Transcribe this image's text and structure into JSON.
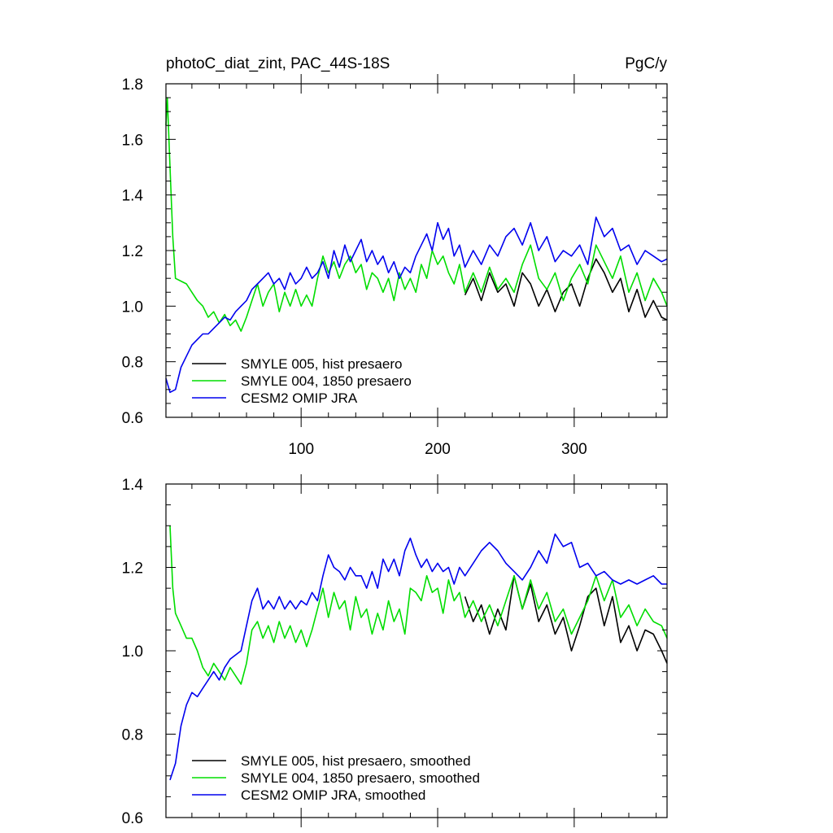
{
  "chart_data": [
    {
      "type": "line",
      "title": "photoC_diat_zint, PAC_44S-18S",
      "units": "PgC/y",
      "xlabel": "",
      "ylabel": "",
      "xlim": [
        1,
        368
      ],
      "ylim": [
        0.6,
        1.8
      ],
      "x_ticks": [
        100,
        200,
        300
      ],
      "y_ticks": [
        0.6,
        0.8,
        1.0,
        1.2,
        1.4,
        1.6,
        1.8
      ],
      "y_tick_labels": [
        "0.6",
        "0.8",
        "1.0",
        "1.2",
        "1.4",
        "1.6",
        "1.8"
      ],
      "x_tick_labels": [
        "100",
        "200",
        "300"
      ],
      "legend_position": "bottom-left",
      "series": [
        {
          "name": "SMYLE 005, hist presaero",
          "color": "#000000",
          "start": 220,
          "x": [
            220,
            226,
            232,
            238,
            244,
            250,
            256,
            262,
            268,
            274,
            280,
            286,
            292,
            298,
            304,
            310,
            316,
            322,
            328,
            334,
            340,
            346,
            352,
            358,
            364,
            368
          ],
          "values": [
            1.04,
            1.1,
            1.02,
            1.12,
            1.05,
            1.08,
            1.0,
            1.12,
            1.08,
            1.0,
            1.06,
            0.98,
            1.05,
            1.08,
            1.0,
            1.1,
            1.17,
            1.12,
            1.05,
            1.1,
            0.98,
            1.06,
            0.96,
            1.02,
            0.96,
            0.95
          ]
        },
        {
          "name": "SMYLE 004, 1850 presaero",
          "color": "#00dd00",
          "x": [
            1,
            2,
            4,
            6,
            8,
            12,
            16,
            20,
            24,
            28,
            32,
            36,
            40,
            44,
            48,
            52,
            56,
            60,
            64,
            68,
            72,
            76,
            80,
            84,
            88,
            92,
            96,
            100,
            104,
            108,
            112,
            116,
            120,
            124,
            128,
            132,
            136,
            140,
            144,
            148,
            152,
            156,
            160,
            164,
            168,
            172,
            176,
            180,
            184,
            188,
            192,
            196,
            200,
            204,
            208,
            212,
            216,
            220,
            226,
            232,
            238,
            244,
            250,
            256,
            262,
            268,
            274,
            280,
            286,
            292,
            298,
            304,
            310,
            316,
            322,
            328,
            334,
            340,
            346,
            352,
            358,
            364,
            368
          ],
          "values": [
            1.65,
            1.75,
            1.5,
            1.25,
            1.1,
            1.09,
            1.08,
            1.05,
            1.02,
            1.0,
            0.96,
            0.98,
            0.94,
            0.97,
            0.93,
            0.95,
            0.91,
            0.96,
            1.02,
            1.08,
            1.0,
            1.05,
            1.08,
            0.98,
            1.05,
            1.0,
            1.06,
            1.0,
            1.04,
            1.0,
            1.1,
            1.18,
            1.12,
            1.16,
            1.1,
            1.15,
            1.18,
            1.12,
            1.15,
            1.06,
            1.12,
            1.1,
            1.05,
            1.1,
            1.02,
            1.12,
            1.06,
            1.1,
            1.05,
            1.15,
            1.1,
            1.2,
            1.15,
            1.18,
            1.12,
            1.08,
            1.15,
            1.05,
            1.12,
            1.05,
            1.14,
            1.06,
            1.1,
            1.05,
            1.15,
            1.22,
            1.1,
            1.06,
            1.12,
            1.02,
            1.1,
            1.15,
            1.08,
            1.22,
            1.16,
            1.1,
            1.18,
            1.05,
            1.12,
            1.02,
            1.1,
            1.05,
            1.0
          ]
        },
        {
          "name": "CESM2 OMIP JRA",
          "color": "#0000ee",
          "x": [
            1,
            4,
            8,
            12,
            16,
            20,
            24,
            28,
            32,
            36,
            40,
            44,
            48,
            52,
            56,
            60,
            64,
            68,
            72,
            76,
            80,
            84,
            88,
            92,
            96,
            100,
            104,
            108,
            112,
            116,
            120,
            124,
            128,
            132,
            136,
            140,
            144,
            148,
            152,
            156,
            160,
            164,
            168,
            172,
            176,
            180,
            184,
            188,
            192,
            196,
            200,
            204,
            208,
            212,
            216,
            220,
            226,
            232,
            238,
            244,
            250,
            256,
            262,
            268,
            274,
            280,
            286,
            292,
            298,
            304,
            310,
            316,
            322,
            328,
            334,
            340,
            346,
            352,
            358,
            364,
            368
          ],
          "values": [
            0.74,
            0.69,
            0.7,
            0.78,
            0.82,
            0.86,
            0.88,
            0.9,
            0.9,
            0.92,
            0.94,
            0.96,
            0.95,
            0.98,
            1.0,
            1.02,
            1.06,
            1.08,
            1.1,
            1.12,
            1.08,
            1.1,
            1.06,
            1.12,
            1.08,
            1.1,
            1.14,
            1.1,
            1.12,
            1.16,
            1.1,
            1.2,
            1.14,
            1.22,
            1.16,
            1.2,
            1.24,
            1.16,
            1.2,
            1.15,
            1.18,
            1.12,
            1.16,
            1.1,
            1.14,
            1.12,
            1.18,
            1.22,
            1.26,
            1.2,
            1.3,
            1.24,
            1.28,
            1.18,
            1.22,
            1.14,
            1.2,
            1.15,
            1.22,
            1.18,
            1.25,
            1.28,
            1.22,
            1.3,
            1.2,
            1.25,
            1.16,
            1.2,
            1.18,
            1.22,
            1.15,
            1.32,
            1.25,
            1.28,
            1.2,
            1.22,
            1.15,
            1.2,
            1.18,
            1.16,
            1.17
          ]
        }
      ]
    },
    {
      "type": "line",
      "title": "",
      "xlabel": "",
      "ylabel": "",
      "xlim": [
        1,
        368
      ],
      "ylim": [
        0.6,
        1.4
      ],
      "x_ticks": [
        100,
        200,
        300
      ],
      "y_ticks": [
        0.6,
        0.8,
        1.0,
        1.2,
        1.4
      ],
      "y_tick_labels": [
        "0.6",
        "0.8",
        "1.0",
        "1.2",
        "1.4"
      ],
      "legend_position": "bottom-left",
      "series": [
        {
          "name": "SMYLE 005, hist presaero, smoothed",
          "color": "#000000",
          "x": [
            220,
            226,
            232,
            238,
            244,
            250,
            256,
            262,
            268,
            274,
            280,
            286,
            292,
            298,
            304,
            310,
            316,
            322,
            328,
            334,
            340,
            346,
            352,
            358,
            364,
            368
          ],
          "values": [
            1.13,
            1.07,
            1.11,
            1.04,
            1.1,
            1.05,
            1.18,
            1.1,
            1.16,
            1.07,
            1.11,
            1.04,
            1.08,
            1.0,
            1.06,
            1.13,
            1.15,
            1.06,
            1.13,
            1.02,
            1.06,
            1.0,
            1.05,
            1.04,
            1.0,
            0.97
          ]
        },
        {
          "name": "SMYLE 004, 1850 presaero, smoothed",
          "color": "#00dd00",
          "x": [
            4,
            6,
            8,
            12,
            16,
            20,
            24,
            28,
            32,
            36,
            40,
            44,
            48,
            52,
            56,
            60,
            64,
            68,
            72,
            76,
            80,
            84,
            88,
            92,
            96,
            100,
            104,
            108,
            112,
            116,
            120,
            124,
            128,
            132,
            136,
            140,
            144,
            148,
            152,
            156,
            160,
            164,
            168,
            172,
            176,
            180,
            184,
            188,
            192,
            196,
            200,
            204,
            208,
            212,
            216,
            220,
            226,
            232,
            238,
            244,
            250,
            256,
            262,
            268,
            274,
            280,
            286,
            292,
            298,
            304,
            310,
            316,
            322,
            328,
            334,
            340,
            346,
            352,
            358,
            364,
            368
          ],
          "values": [
            1.3,
            1.15,
            1.09,
            1.06,
            1.03,
            1.03,
            1.0,
            0.96,
            0.94,
            0.97,
            0.95,
            0.93,
            0.96,
            0.94,
            0.92,
            0.97,
            1.05,
            1.07,
            1.03,
            1.06,
            1.02,
            1.07,
            1.03,
            1.06,
            1.02,
            1.05,
            1.01,
            1.05,
            1.1,
            1.15,
            1.08,
            1.14,
            1.1,
            1.12,
            1.05,
            1.13,
            1.08,
            1.1,
            1.04,
            1.09,
            1.05,
            1.12,
            1.07,
            1.1,
            1.04,
            1.15,
            1.14,
            1.12,
            1.18,
            1.14,
            1.15,
            1.09,
            1.17,
            1.12,
            1.14,
            1.08,
            1.12,
            1.07,
            1.11,
            1.06,
            1.12,
            1.18,
            1.1,
            1.17,
            1.1,
            1.14,
            1.07,
            1.1,
            1.04,
            1.08,
            1.12,
            1.18,
            1.12,
            1.17,
            1.08,
            1.11,
            1.06,
            1.1,
            1.07,
            1.06,
            1.03
          ]
        },
        {
          "name": "CESM2 OMIP JRA, smoothed",
          "color": "#0000ee",
          "x": [
            4,
            8,
            12,
            16,
            20,
            24,
            28,
            32,
            36,
            40,
            44,
            48,
            52,
            56,
            60,
            64,
            68,
            72,
            76,
            80,
            84,
            88,
            92,
            96,
            100,
            104,
            108,
            112,
            116,
            120,
            124,
            128,
            132,
            136,
            140,
            144,
            148,
            152,
            156,
            160,
            164,
            168,
            172,
            176,
            180,
            184,
            188,
            192,
            196,
            200,
            204,
            208,
            212,
            216,
            220,
            226,
            232,
            238,
            244,
            250,
            256,
            262,
            268,
            274,
            280,
            286,
            292,
            298,
            304,
            310,
            316,
            322,
            328,
            334,
            340,
            346,
            352,
            358,
            364,
            368
          ],
          "values": [
            0.69,
            0.73,
            0.82,
            0.87,
            0.9,
            0.89,
            0.91,
            0.93,
            0.95,
            0.93,
            0.96,
            0.98,
            0.99,
            1.0,
            1.06,
            1.12,
            1.15,
            1.1,
            1.12,
            1.1,
            1.13,
            1.1,
            1.12,
            1.1,
            1.12,
            1.11,
            1.14,
            1.12,
            1.18,
            1.23,
            1.2,
            1.19,
            1.17,
            1.2,
            1.18,
            1.18,
            1.15,
            1.19,
            1.15,
            1.22,
            1.19,
            1.22,
            1.18,
            1.24,
            1.27,
            1.23,
            1.2,
            1.22,
            1.19,
            1.21,
            1.19,
            1.2,
            1.16,
            1.2,
            1.18,
            1.21,
            1.24,
            1.26,
            1.24,
            1.21,
            1.19,
            1.17,
            1.2,
            1.24,
            1.21,
            1.28,
            1.25,
            1.26,
            1.2,
            1.21,
            1.18,
            1.19,
            1.17,
            1.16,
            1.17,
            1.16,
            1.17,
            1.18,
            1.16,
            1.16
          ]
        }
      ]
    }
  ]
}
